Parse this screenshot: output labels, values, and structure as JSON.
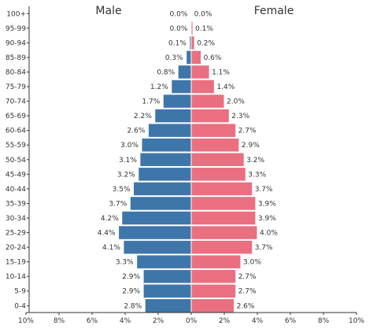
{
  "chart_data": {
    "type": "bar",
    "orientation": "horizontal",
    "subtype": "population-pyramid",
    "categories": [
      "100+",
      "95-99",
      "90-94",
      "85-89",
      "80-84",
      "75-79",
      "70-74",
      "65-69",
      "60-64",
      "55-59",
      "50-54",
      "45-49",
      "40-44",
      "35-39",
      "30-34",
      "25-29",
      "20-24",
      "15-19",
      "10-14",
      "5-9",
      "0-4"
    ],
    "series": [
      {
        "name": "Male",
        "color": "#3f76aa",
        "values": [
          0.0,
          0.0,
          0.1,
          0.3,
          0.8,
          1.2,
          1.7,
          2.2,
          2.6,
          3.0,
          3.1,
          3.2,
          3.5,
          3.7,
          4.2,
          4.4,
          4.1,
          3.3,
          2.9,
          2.9,
          2.8
        ]
      },
      {
        "name": "Female",
        "color": "#ea6f80",
        "values": [
          0.0,
          0.1,
          0.2,
          0.6,
          1.1,
          1.4,
          2.0,
          2.3,
          2.7,
          2.9,
          3.2,
          3.3,
          3.7,
          3.9,
          3.9,
          4.0,
          3.7,
          3.0,
          2.7,
          2.7,
          2.6
        ]
      }
    ],
    "data_labels": {
      "male": [
        "0.0%",
        "0.0%",
        "0.1%",
        "0.3%",
        "0.8%",
        "1.2%",
        "1.7%",
        "2.2%",
        "2.6%",
        "3.0%",
        "3.1%",
        "3.2%",
        "3.5%",
        "3.7%",
        "4.2%",
        "4.4%",
        "4.1%",
        "3.3%",
        "2.9%",
        "2.9%",
        "2.8%"
      ],
      "female": [
        "0.0%",
        "0.1%",
        "0.2%",
        "0.6%",
        "1.1%",
        "1.4%",
        "2.0%",
        "2.3%",
        "2.7%",
        "2.9%",
        "3.2%",
        "3.3%",
        "3.7%",
        "3.9%",
        "3.9%",
        "4.0%",
        "3.7%",
        "3.0%",
        "2.7%",
        "2.7%",
        "2.6%"
      ]
    },
    "xlim": [
      -10,
      10
    ],
    "xticks": [
      -10,
      -8,
      -6,
      -4,
      -2,
      0,
      2,
      4,
      6,
      8,
      10
    ],
    "xtick_labels": [
      "10%",
      "8%",
      "6%",
      "4%",
      "2%",
      "0%",
      "2%",
      "4%",
      "6%",
      "8%",
      "10%"
    ],
    "title": "",
    "xlabel": "",
    "ylabel": "",
    "grid": false,
    "legend": "none"
  }
}
